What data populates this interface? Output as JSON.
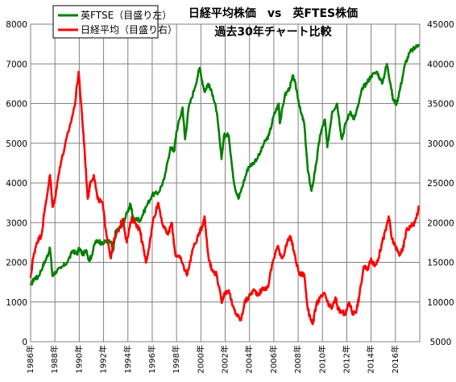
{
  "chart_data": {
    "type": "line",
    "title_lines": [
      "日経平均株価　vs　英FTES株価",
      "過去30年チャート比較"
    ],
    "x_range": [
      1986,
      2018
    ],
    "x_ticks": [
      "1986年",
      "1988年",
      "1990年",
      "1992年",
      "1994年",
      "1996年",
      "1998年",
      "2000年",
      "2002年",
      "2004年",
      "2006年",
      "2008年",
      "2010年",
      "2012年",
      "2014年",
      "2016年"
    ],
    "y_left": {
      "range": [
        0,
        8000
      ],
      "ticks": [
        "0",
        "1000",
        "2000",
        "3000",
        "4000",
        "5000",
        "6000",
        "7000",
        "8000"
      ]
    },
    "y_right": {
      "range": [
        5000,
        45000
      ],
      "ticks": [
        "5000",
        "10000",
        "15000",
        "20000",
        "25000",
        "30000",
        "35000",
        "40000",
        "45000"
      ]
    },
    "grid": true,
    "legend_position": "top-left",
    "series": [
      {
        "name": "英FTSE（目盛り左）",
        "axis": "left",
        "color": "#008000",
        "points": [
          [
            1986.0,
            1420
          ],
          [
            1986.3,
            1600
          ],
          [
            1986.6,
            1620
          ],
          [
            1987.0,
            1900
          ],
          [
            1987.3,
            2100
          ],
          [
            1987.6,
            2350
          ],
          [
            1987.8,
            1650
          ],
          [
            1988.0,
            1750
          ],
          [
            1988.5,
            1850
          ],
          [
            1989.0,
            2000
          ],
          [
            1989.5,
            2300
          ],
          [
            1989.8,
            2200
          ],
          [
            1990.0,
            2350
          ],
          [
            1990.3,
            2200
          ],
          [
            1990.6,
            2300
          ],
          [
            1990.8,
            2050
          ],
          [
            1991.0,
            2150
          ],
          [
            1991.3,
            2500
          ],
          [
            1991.6,
            2550
          ],
          [
            1991.9,
            2450
          ],
          [
            1992.2,
            2550
          ],
          [
            1992.6,
            2500
          ],
          [
            1992.8,
            2300
          ],
          [
            1993.0,
            2800
          ],
          [
            1993.5,
            2900
          ],
          [
            1994.0,
            3300
          ],
          [
            1994.2,
            3450
          ],
          [
            1994.5,
            3050
          ],
          [
            1994.8,
            3100
          ],
          [
            1995.0,
            3050
          ],
          [
            1995.5,
            3400
          ],
          [
            1996.0,
            3700
          ],
          [
            1996.5,
            3750
          ],
          [
            1997.0,
            4100
          ],
          [
            1997.5,
            4900
          ],
          [
            1997.8,
            4800
          ],
          [
            1998.0,
            5300
          ],
          [
            1998.5,
            5900
          ],
          [
            1998.7,
            5100
          ],
          [
            1999.0,
            5900
          ],
          [
            1999.5,
            6400
          ],
          [
            1999.9,
            6900
          ],
          [
            2000.3,
            6300
          ],
          [
            2000.6,
            6500
          ],
          [
            2001.0,
            6200
          ],
          [
            2001.3,
            5800
          ],
          [
            2001.7,
            4600
          ],
          [
            2001.9,
            5200
          ],
          [
            2002.3,
            5200
          ],
          [
            2002.6,
            4300
          ],
          [
            2002.8,
            3900
          ],
          [
            2003.1,
            3600
          ],
          [
            2003.5,
            4000
          ],
          [
            2003.9,
            4400
          ],
          [
            2004.3,
            4500
          ],
          [
            2004.8,
            4700
          ],
          [
            2005.2,
            5000
          ],
          [
            2005.6,
            5200
          ],
          [
            2006.0,
            5700
          ],
          [
            2006.4,
            6000
          ],
          [
            2006.5,
            5500
          ],
          [
            2006.9,
            6200
          ],
          [
            2007.3,
            6400
          ],
          [
            2007.6,
            6700
          ],
          [
            2007.9,
            6300
          ],
          [
            2008.2,
            5800
          ],
          [
            2008.5,
            5500
          ],
          [
            2008.8,
            4300
          ],
          [
            2009.1,
            3800
          ],
          [
            2009.4,
            4300
          ],
          [
            2009.8,
            5200
          ],
          [
            2010.2,
            5600
          ],
          [
            2010.4,
            4900
          ],
          [
            2010.8,
            5800
          ],
          [
            2011.2,
            6000
          ],
          [
            2011.6,
            5100
          ],
          [
            2011.9,
            5500
          ],
          [
            2012.3,
            5800
          ],
          [
            2012.6,
            5600
          ],
          [
            2012.9,
            5900
          ],
          [
            2013.3,
            6400
          ],
          [
            2013.6,
            6500
          ],
          [
            2014.0,
            6700
          ],
          [
            2014.5,
            6800
          ],
          [
            2014.9,
            6500
          ],
          [
            2015.3,
            7000
          ],
          [
            2015.6,
            6500
          ],
          [
            2015.8,
            6100
          ],
          [
            2016.1,
            6000
          ],
          [
            2016.4,
            6400
          ],
          [
            2016.8,
            7000
          ],
          [
            2017.2,
            7300
          ],
          [
            2017.6,
            7400
          ],
          [
            2017.9,
            7500
          ]
        ]
      },
      {
        "name": "日経平均（目盛り右）",
        "axis": "right",
        "color": "#ff0000",
        "points": [
          [
            1986.0,
            13000
          ],
          [
            1986.2,
            15500
          ],
          [
            1986.5,
            17500
          ],
          [
            1986.9,
            18500
          ],
          [
            1987.2,
            22000
          ],
          [
            1987.6,
            26000
          ],
          [
            1987.8,
            22000
          ],
          [
            1988.0,
            23000
          ],
          [
            1988.4,
            27000
          ],
          [
            1988.8,
            29500
          ],
          [
            1989.2,
            32000
          ],
          [
            1989.6,
            34500
          ],
          [
            1989.95,
            39000
          ],
          [
            1990.2,
            34000
          ],
          [
            1990.4,
            30000
          ],
          [
            1990.7,
            23000
          ],
          [
            1990.9,
            25000
          ],
          [
            1991.2,
            26000
          ],
          [
            1991.5,
            23000
          ],
          [
            1991.9,
            22500
          ],
          [
            1992.2,
            19000
          ],
          [
            1992.6,
            15500
          ],
          [
            1992.8,
            17500
          ],
          [
            1993.2,
            19000
          ],
          [
            1993.6,
            20500
          ],
          [
            1993.9,
            17500
          ],
          [
            1994.3,
            20500
          ],
          [
            1994.6,
            20000
          ],
          [
            1995.0,
            19000
          ],
          [
            1995.3,
            16500
          ],
          [
            1995.5,
            15000
          ],
          [
            1995.8,
            17500
          ],
          [
            1996.1,
            20500
          ],
          [
            1996.5,
            22500
          ],
          [
            1996.9,
            19500
          ],
          [
            1997.3,
            18500
          ],
          [
            1997.6,
            20000
          ],
          [
            1997.9,
            16000
          ],
          [
            1998.3,
            15500
          ],
          [
            1998.7,
            14000
          ],
          [
            1998.9,
            13500
          ],
          [
            1999.3,
            16500
          ],
          [
            1999.7,
            18000
          ],
          [
            2000.1,
            19500
          ],
          [
            2000.3,
            20800
          ],
          [
            2000.6,
            16000
          ],
          [
            2000.9,
            14000
          ],
          [
            2001.3,
            13500
          ],
          [
            2001.7,
            10000
          ],
          [
            2001.9,
            11000
          ],
          [
            2002.3,
            11500
          ],
          [
            2002.6,
            9500
          ],
          [
            2002.9,
            8500
          ],
          [
            2003.3,
            7700
          ],
          [
            2003.6,
            10000
          ],
          [
            2003.9,
            10500
          ],
          [
            2004.3,
            11500
          ],
          [
            2004.7,
            11000
          ],
          [
            2005.0,
            11500
          ],
          [
            2005.5,
            11800
          ],
          [
            2005.9,
            15000
          ],
          [
            2006.3,
            17000
          ],
          [
            2006.7,
            15500
          ],
          [
            2007.1,
            17500
          ],
          [
            2007.4,
            18200
          ],
          [
            2007.7,
            16000
          ],
          [
            2008.1,
            13500
          ],
          [
            2008.5,
            13500
          ],
          [
            2008.8,
            9000
          ],
          [
            2009.2,
            7200
          ],
          [
            2009.5,
            9700
          ],
          [
            2009.8,
            10500
          ],
          [
            2010.2,
            11000
          ],
          [
            2010.5,
            9500
          ],
          [
            2010.8,
            9300
          ],
          [
            2011.1,
            10500
          ],
          [
            2011.3,
            9000
          ],
          [
            2011.6,
            8700
          ],
          [
            2011.9,
            8500
          ],
          [
            2012.2,
            10000
          ],
          [
            2012.5,
            8500
          ],
          [
            2012.8,
            9000
          ],
          [
            2013.0,
            10500
          ],
          [
            2013.4,
            14500
          ],
          [
            2013.7,
            14000
          ],
          [
            2014.0,
            15500
          ],
          [
            2014.3,
            14500
          ],
          [
            2014.6,
            15500
          ],
          [
            2014.9,
            17500
          ],
          [
            2015.2,
            19000
          ],
          [
            2015.45,
            20800
          ],
          [
            2015.7,
            18000
          ],
          [
            2016.0,
            17000
          ],
          [
            2016.3,
            16000
          ],
          [
            2016.6,
            16500
          ],
          [
            2016.9,
            19000
          ],
          [
            2017.2,
            19500
          ],
          [
            2017.6,
            20000
          ],
          [
            2017.95,
            22000
          ]
        ]
      }
    ]
  }
}
